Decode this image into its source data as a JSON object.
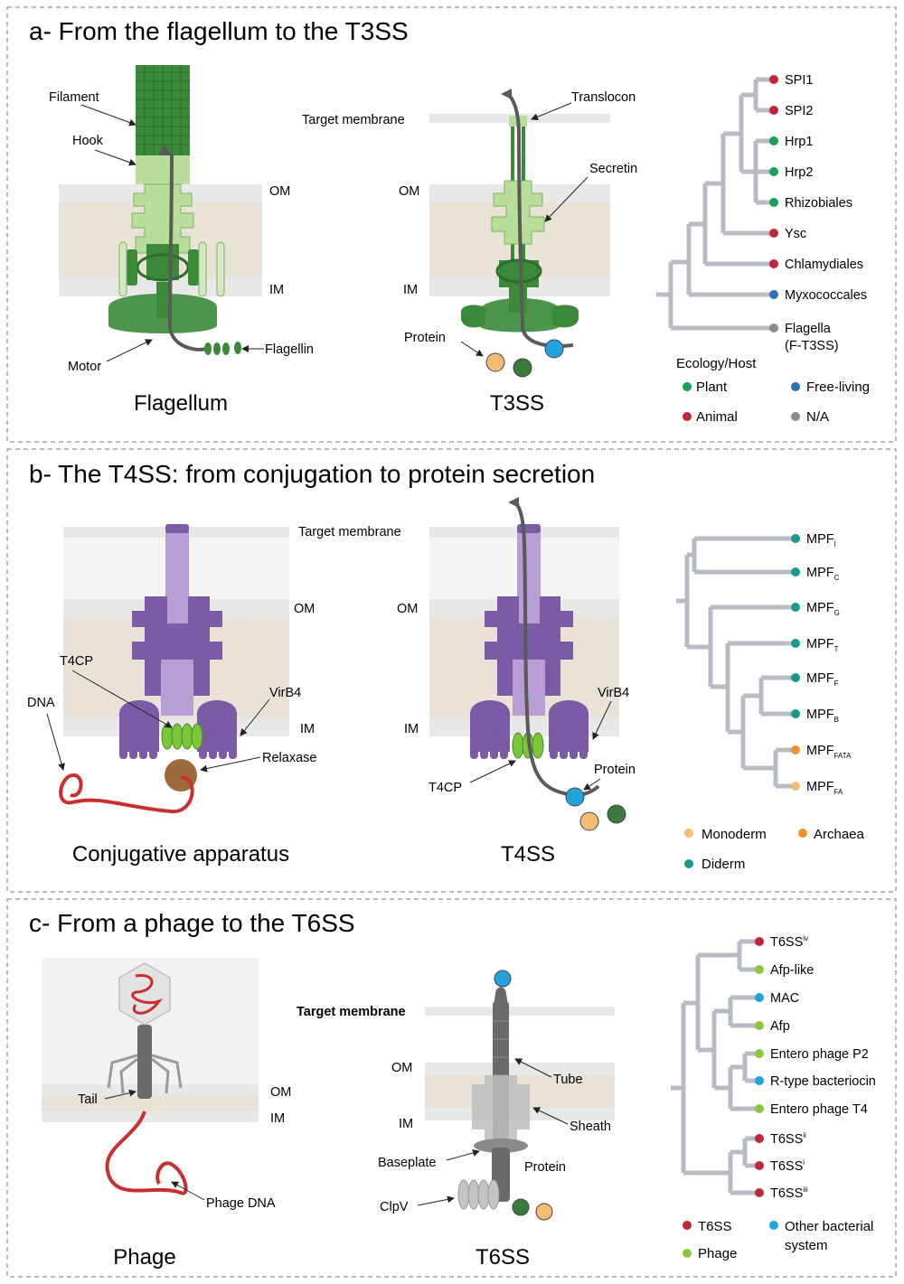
{
  "panel_a": {
    "title": "a- From the flagellum to the T3SS",
    "flagellum": {
      "caption": "Flagellum",
      "labels": {
        "filament": "Filament",
        "hook": "Hook",
        "motor": "Motor",
        "flagellin": "Flagellin",
        "om": "OM",
        "im": "IM"
      }
    },
    "t3ss": {
      "caption": "T3SS",
      "labels": {
        "target_membrane": "Target membrane",
        "translocon": "Translocon",
        "secretin": "Secretin",
        "protein": "Protein",
        "om": "OM",
        "im": "IM"
      }
    },
    "tree": {
      "tips": [
        {
          "label": "SPI1",
          "color": "#c0283a"
        },
        {
          "label": "SPI2",
          "color": "#c0283a"
        },
        {
          "label": "Hrp1",
          "color": "#1a9e5a"
        },
        {
          "label": "Hrp2",
          "color": "#1a9e5a"
        },
        {
          "label": "Rhizobiales",
          "color": "#1a9e5a"
        },
        {
          "label": "Ysc",
          "color": "#c0283a"
        },
        {
          "label": "Chlamydiales",
          "color": "#c0283a"
        },
        {
          "label": "Myxococcales",
          "color": "#2e6fb8"
        },
        {
          "label": "Flagella",
          "label2": "(F-T3SS)",
          "color": "#8a8a8a"
        }
      ],
      "legend": {
        "title": "Ecology/Host",
        "items": [
          {
            "label": "Plant",
            "color": "#1a9e5a"
          },
          {
            "label": "Free-living",
            "color": "#2e6fb8"
          },
          {
            "label": "Animal",
            "color": "#c0283a"
          },
          {
            "label": "N/A",
            "color": "#8a8a8a"
          }
        ]
      }
    }
  },
  "panel_b": {
    "title": "b- The T4SS: from conjugation to protein secretion",
    "conjugative": {
      "caption": "Conjugative apparatus",
      "labels": {
        "target_membrane": "Target membrane",
        "om": "OM",
        "im": "IM",
        "t4cp": "T4CP",
        "dna": "DNA",
        "virb4": "VirB4",
        "relaxase": "Relaxase"
      }
    },
    "t4ss": {
      "caption": "T4SS",
      "labels": {
        "om": "OM",
        "im": "IM",
        "virb4": "VirB4",
        "t4cp": "T4CP",
        "protein": "Protein"
      }
    },
    "tree": {
      "tips": [
        {
          "label": "MPF",
          "sub": "I",
          "color": "#17998e"
        },
        {
          "label": "MPF",
          "sub": "C",
          "color": "#17998e"
        },
        {
          "label": "MPF",
          "sub": "G",
          "color": "#17998e"
        },
        {
          "label": "MPF",
          "sub": "T",
          "color": "#17998e"
        },
        {
          "label": "MPF",
          "sub": "F",
          "color": "#17998e"
        },
        {
          "label": "MPF",
          "sub": "B",
          "color": "#17998e"
        },
        {
          "label": "MPF",
          "sub": "FATA",
          "color": "#f0932b"
        },
        {
          "label": "MPF",
          "sub": "FA",
          "color": "#f5bd74"
        }
      ],
      "legend": {
        "items": [
          {
            "label": "Monoderm",
            "color": "#f5bd74"
          },
          {
            "label": "Archaea",
            "color": "#f0932b"
          },
          {
            "label": "Diderm",
            "color": "#17998e"
          }
        ]
      }
    }
  },
  "panel_c": {
    "title": "c- From a phage to the T6SS",
    "phage": {
      "caption": "Phage",
      "labels": {
        "tail": "Tail",
        "om": "OM",
        "im": "IM",
        "phage_dna": "Phage DNA"
      }
    },
    "t6ss": {
      "caption": "T6SS",
      "labels": {
        "target_membrane": "Target membrane",
        "om": "OM",
        "im": "IM",
        "tube": "Tube",
        "sheath": "Sheath",
        "baseplate": "Baseplate",
        "protein": "Protein",
        "clpv": "ClpV"
      }
    },
    "tree": {
      "tips": [
        {
          "label": "T6SS",
          "sup": "iv",
          "color": "#c0283a"
        },
        {
          "label": "Afp-like",
          "color": "#8cc63f"
        },
        {
          "label": "MAC",
          "color": "#22a3dc"
        },
        {
          "label": "Afp",
          "color": "#8cc63f"
        },
        {
          "label": "Entero phage P2",
          "color": "#8cc63f"
        },
        {
          "label": "R-type bacteriocin",
          "color": "#22a3dc"
        },
        {
          "label": "Entero phage T4",
          "color": "#8cc63f"
        },
        {
          "label": "T6SS",
          "sup": "ii",
          "color": "#c0283a"
        },
        {
          "label": "T6SS",
          "sup": "i",
          "color": "#c0283a"
        },
        {
          "label": "T6SS",
          "sup": "iii",
          "color": "#c0283a"
        }
      ],
      "legend": {
        "items": [
          {
            "label": "T6SS",
            "color": "#c0283a"
          },
          {
            "label": "Other bacterial",
            "label2": "system",
            "color": "#22a3dc"
          },
          {
            "label": "Phage",
            "color": "#8cc63f"
          }
        ]
      }
    }
  },
  "colors": {
    "membrane_gray": "#e8e8e8",
    "periplasm": "#e9e2d6",
    "flagellar_green_dark": "#3a8a3a",
    "flagellar_green_light": "#b9dd9a",
    "t4ss_purple": "#7b5aa6",
    "t4ss_purple_light": "#b79fd6",
    "t4cp_green": "#7cc63a",
    "dna_red": "#c7302e",
    "tree_gray": "#b7bcc4",
    "arrow_gray": "#5a5a5a"
  }
}
